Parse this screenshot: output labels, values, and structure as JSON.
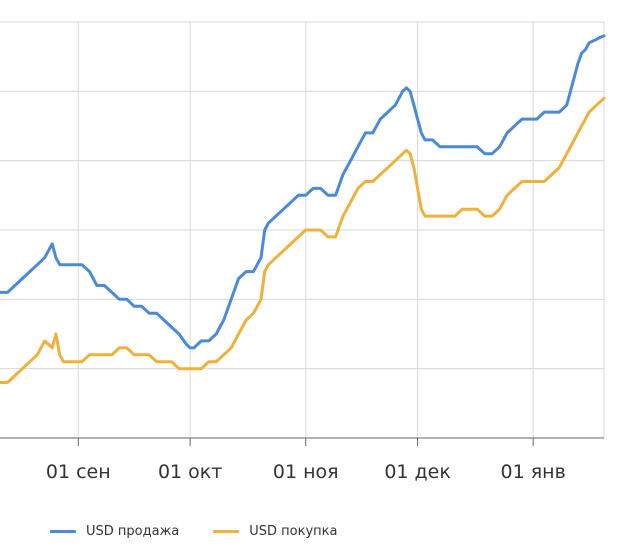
{
  "colors": {
    "sell": "#4a8ad8",
    "buy": "#f0b13c",
    "grid": "#d9d9d9",
    "axis": "#666666"
  },
  "legend": {
    "sell_label": "USD продажа",
    "buy_label": "USD покупка",
    "placement": "bottom-left"
  },
  "chart_data": {
    "type": "line",
    "title": "",
    "xlabel": "",
    "ylabel": "",
    "grid": true,
    "x_ticks": [
      "01 сен",
      "01 окт",
      "01 ноя",
      "01 дек",
      "01 янв"
    ],
    "x_tick_positions": [
      21,
      51,
      82,
      112,
      143
    ],
    "x_range": [
      0,
      162
    ],
    "y_range": [
      0,
      6
    ],
    "y_tick_count": 6,
    "x": [
      0,
      2,
      4,
      6,
      8,
      10,
      12,
      14,
      15,
      16,
      17,
      18,
      20,
      22,
      24,
      26,
      28,
      30,
      32,
      34,
      36,
      38,
      40,
      42,
      44,
      46,
      48,
      50,
      51,
      52,
      53,
      54,
      56,
      58,
      60,
      62,
      64,
      66,
      68,
      70,
      71,
      72,
      74,
      76,
      78,
      80,
      82,
      84,
      86,
      88,
      90,
      92,
      94,
      96,
      98,
      100,
      102,
      104,
      106,
      108,
      109,
      110,
      111,
      112,
      113,
      114,
      116,
      118,
      120,
      122,
      124,
      126,
      128,
      130,
      132,
      134,
      136,
      138,
      140,
      142,
      144,
      146,
      148,
      150,
      152,
      154,
      155,
      156,
      157,
      158,
      160,
      161,
      162
    ],
    "series": [
      {
        "name": "USD продажа",
        "values": [
          2.1,
          2.1,
          2.2,
          2.3,
          2.4,
          2.5,
          2.6,
          2.8,
          2.6,
          2.5,
          2.5,
          2.5,
          2.5,
          2.5,
          2.4,
          2.2,
          2.2,
          2.1,
          2.0,
          2.0,
          1.9,
          1.9,
          1.8,
          1.8,
          1.7,
          1.6,
          1.5,
          1.35,
          1.3,
          1.3,
          1.35,
          1.4,
          1.4,
          1.5,
          1.7,
          2.0,
          2.3,
          2.4,
          2.4,
          2.6,
          3.0,
          3.1,
          3.2,
          3.3,
          3.4,
          3.5,
          3.5,
          3.6,
          3.6,
          3.5,
          3.5,
          3.8,
          4.0,
          4.2,
          4.4,
          4.4,
          4.6,
          4.7,
          4.8,
          5.0,
          5.05,
          5.0,
          4.8,
          4.6,
          4.4,
          4.3,
          4.3,
          4.2,
          4.2,
          4.2,
          4.2,
          4.2,
          4.2,
          4.1,
          4.1,
          4.2,
          4.4,
          4.5,
          4.6,
          4.6,
          4.6,
          4.7,
          4.7,
          4.7,
          4.8,
          5.2,
          5.4,
          5.55,
          5.6,
          5.7,
          5.75,
          5.78,
          5.8
        ]
      },
      {
        "name": "USD покупка",
        "values": [
          0.8,
          0.8,
          0.9,
          1.0,
          1.1,
          1.2,
          1.4,
          1.3,
          1.5,
          1.2,
          1.1,
          1.1,
          1.1,
          1.1,
          1.2,
          1.2,
          1.2,
          1.2,
          1.3,
          1.3,
          1.2,
          1.2,
          1.2,
          1.1,
          1.1,
          1.1,
          1.0,
          1.0,
          1.0,
          1.0,
          1.0,
          1.0,
          1.1,
          1.1,
          1.2,
          1.3,
          1.5,
          1.7,
          1.8,
          2.0,
          2.4,
          2.5,
          2.6,
          2.7,
          2.8,
          2.9,
          3.0,
          3.0,
          3.0,
          2.9,
          2.9,
          3.2,
          3.4,
          3.6,
          3.7,
          3.7,
          3.8,
          3.9,
          4.0,
          4.1,
          4.15,
          4.1,
          3.9,
          3.6,
          3.3,
          3.2,
          3.2,
          3.2,
          3.2,
          3.2,
          3.3,
          3.3,
          3.3,
          3.2,
          3.2,
          3.3,
          3.5,
          3.6,
          3.7,
          3.7,
          3.7,
          3.7,
          3.8,
          3.9,
          4.1,
          4.3,
          4.4,
          4.5,
          4.6,
          4.7,
          4.8,
          4.85,
          4.9
        ]
      }
    ]
  }
}
